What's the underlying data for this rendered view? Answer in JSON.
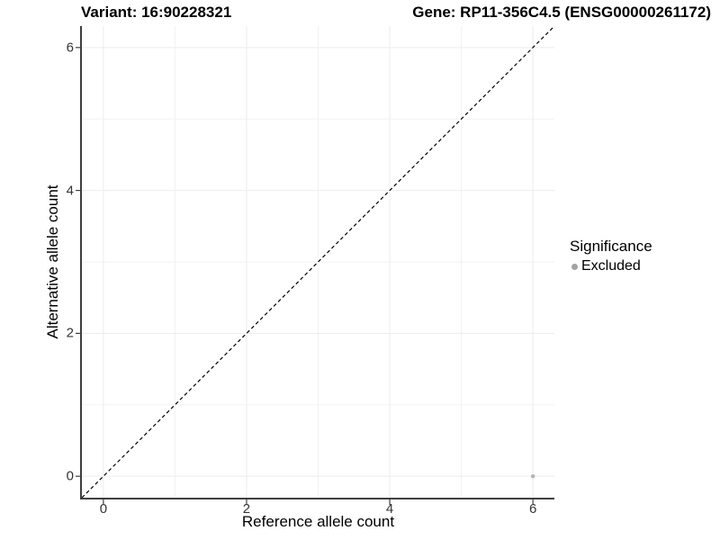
{
  "titles": {
    "left": "Variant: 16:90228321",
    "right": "Gene: RP11-356C4.5 (ENSG00000261172)"
  },
  "chart_data": {
    "type": "scatter",
    "title_left": "Variant: 16:90228321",
    "title_right": "Gene: RP11-356C4.5 (ENSG00000261172)",
    "xlabel": "Reference allele count",
    "ylabel": "Alternative allele count",
    "xlim": [
      -0.3,
      6.3
    ],
    "ylim": [
      -0.3,
      6.3
    ],
    "x_ticks": [
      0,
      2,
      4,
      6
    ],
    "y_ticks": [
      0,
      2,
      4,
      6
    ],
    "grid_major": [
      0,
      2,
      4,
      6
    ],
    "grid_minor": [
      1,
      3,
      5
    ],
    "grid_on": true,
    "points": [
      {
        "x": 6,
        "y": 0,
        "series": "Excluded"
      }
    ],
    "reference_line": {
      "kind": "identity y=x",
      "from": [
        -0.3,
        -0.3
      ],
      "to": [
        6.3,
        6.3
      ],
      "style": "dashed",
      "color": "#000000"
    },
    "legend": {
      "title": "Significance",
      "position": "right",
      "entries": [
        {
          "label": "Excluded",
          "color": "#a3a3a3"
        }
      ]
    }
  },
  "colors": {
    "background": "#ffffff",
    "grid_major": "#ececec",
    "grid_minor": "#f2f2f2",
    "spine": "#3f3f3f",
    "tick_mark": "#3f3f3f",
    "tick_label": "#333333",
    "point_fill": "#b5b5b5",
    "legend_dot": "#a3a3a3",
    "dashed_line": "#000000"
  }
}
